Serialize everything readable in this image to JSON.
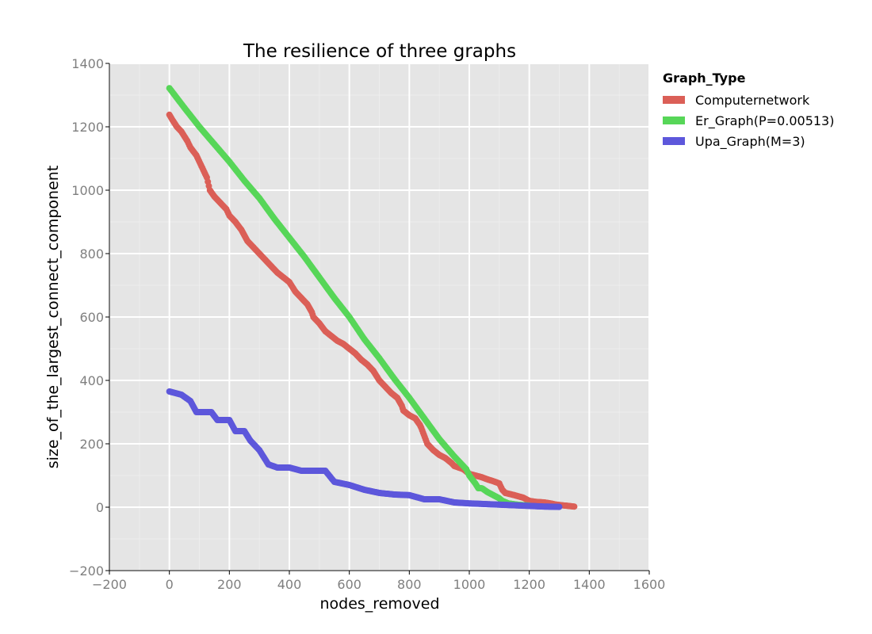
{
  "chart_data": {
    "type": "scatter",
    "title": "The resilience of three graphs",
    "xlabel": "nodes_removed",
    "ylabel": "size_of_the_largest_connect_component",
    "xlim": [
      -200,
      1600
    ],
    "ylim": [
      -200,
      1400
    ],
    "xticks": [
      -200,
      0,
      200,
      400,
      600,
      800,
      1000,
      1200,
      1400,
      1600
    ],
    "yticks": [
      -200,
      0,
      200,
      400,
      600,
      800,
      1000,
      1200,
      1400
    ],
    "xtick_labels": [
      "−200",
      "0",
      "200",
      "400",
      "600",
      "800",
      "1000",
      "1200",
      "1400",
      "1600"
    ],
    "ytick_labels": [
      "−200",
      "0",
      "200",
      "400",
      "600",
      "800",
      "1000",
      "1200",
      "1400"
    ],
    "grid": true,
    "background": "#e5e5e5",
    "legend": {
      "title": "Graph_Type",
      "position": "right"
    },
    "series": [
      {
        "name": "Computernetwork",
        "color": "#db5f57",
        "x": [
          0,
          10,
          25,
          40,
          60,
          70,
          90,
          110,
          125,
          135,
          150,
          170,
          190,
          200,
          220,
          240,
          260,
          280,
          300,
          320,
          340,
          360,
          380,
          400,
          420,
          440,
          460,
          475,
          480,
          500,
          520,
          540,
          560,
          580,
          600,
          620,
          640,
          660,
          680,
          700,
          720,
          740,
          760,
          775,
          780,
          800,
          820,
          835,
          840,
          860,
          880,
          900,
          920,
          940,
          950,
          980,
          1000,
          1020,
          1040,
          1060,
          1080,
          1100,
          1110,
          1120,
          1150,
          1180,
          1200,
          1220,
          1250,
          1270,
          1290,
          1310,
          1330,
          1350
        ],
        "y": [
          1238,
          1222,
          1200,
          1185,
          1155,
          1135,
          1110,
          1070,
          1040,
          1000,
          980,
          960,
          940,
          920,
          900,
          875,
          840,
          820,
          800,
          780,
          760,
          740,
          725,
          710,
          680,
          660,
          640,
          615,
          600,
          580,
          555,
          540,
          525,
          515,
          500,
          485,
          465,
          450,
          430,
          400,
          380,
          360,
          345,
          320,
          305,
          290,
          280,
          260,
          250,
          200,
          180,
          165,
          155,
          140,
          130,
          120,
          105,
          100,
          95,
          88,
          82,
          75,
          55,
          45,
          38,
          30,
          20,
          17,
          15,
          12,
          8,
          6,
          4,
          2
        ]
      },
      {
        "name": "Er_Graph(P=0.00513)",
        "color": "#57d658",
        "x": [
          0,
          50,
          100,
          150,
          200,
          250,
          300,
          350,
          400,
          450,
          500,
          550,
          600,
          650,
          700,
          750,
          800,
          850,
          900,
          950,
          990,
          1000,
          1020,
          1030,
          1040,
          1045,
          1060,
          1080,
          1100,
          1110,
          1130,
          1160,
          1200
        ],
        "y": [
          1322,
          1260,
          1200,
          1145,
          1090,
          1030,
          975,
          910,
          850,
          790,
          725,
          660,
          600,
          530,
          470,
          405,
          345,
          280,
          215,
          160,
          120,
          100,
          75,
          60,
          60,
          58,
          48,
          38,
          28,
          20,
          12,
          8,
          5
        ]
      },
      {
        "name": "Upa_Graph(M=3)",
        "color": "#5d57db",
        "x": [
          0,
          40,
          70,
          90,
          140,
          160,
          200,
          220,
          250,
          270,
          300,
          330,
          360,
          400,
          440,
          480,
          520,
          550,
          600,
          650,
          700,
          750,
          800,
          850,
          900,
          950,
          1000,
          1050,
          1100,
          1150,
          1200,
          1250,
          1300
        ],
        "y": [
          365,
          355,
          335,
          300,
          300,
          275,
          275,
          240,
          240,
          210,
          180,
          135,
          125,
          125,
          115,
          115,
          115,
          80,
          70,
          55,
          45,
          40,
          38,
          25,
          25,
          15,
          12,
          10,
          8,
          6,
          4,
          2,
          1
        ]
      }
    ]
  }
}
